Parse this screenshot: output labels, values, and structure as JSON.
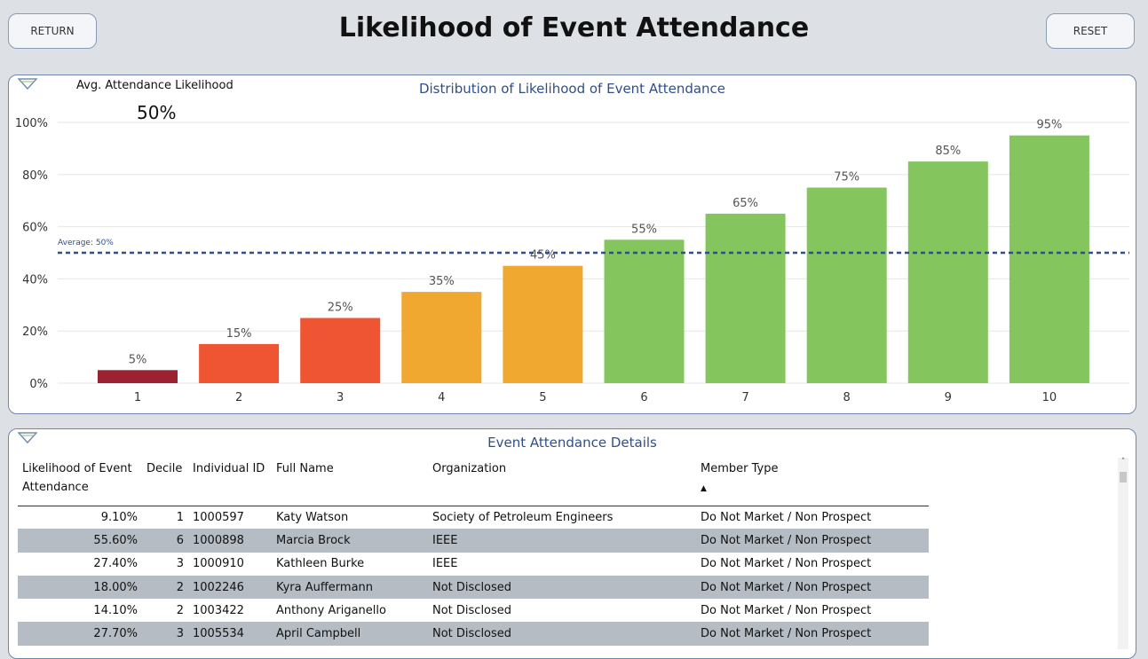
{
  "header": {
    "title": "Likelihood of Event Attendance",
    "return_label": "RETURN",
    "reset_label": "RESET"
  },
  "summary": {
    "label": "Avg. Attendance Likelihood",
    "value": "50%"
  },
  "chart_data": {
    "type": "bar",
    "title": "Distribution of Likelihood of Event Attendance",
    "categories": [
      "1",
      "2",
      "3",
      "4",
      "5",
      "6",
      "7",
      "8",
      "9",
      "10"
    ],
    "values": [
      5,
      15,
      25,
      35,
      45,
      55,
      65,
      75,
      85,
      95
    ],
    "data_labels": [
      "5%",
      "15%",
      "25%",
      "35%",
      "45%",
      "55%",
      "65%",
      "75%",
      "85%",
      "95%"
    ],
    "colors": [
      "#9b2230",
      "#f05533",
      "#f05533",
      "#f0a830",
      "#f0a830",
      "#84c55e",
      "#84c55e",
      "#84c55e",
      "#84c55e",
      "#84c55e"
    ],
    "ylim": [
      0,
      100
    ],
    "yticks": [
      "0%",
      "20%",
      "40%",
      "60%",
      "80%",
      "100%"
    ],
    "grid": true,
    "reference_line": {
      "value": 50,
      "label": "Average: 50%",
      "color": "#2f4f8a",
      "style": "dashed"
    }
  },
  "details": {
    "title": "Event Attendance Details",
    "columns": [
      "Likelihood of Event Attendance",
      "Decile",
      "Individual ID",
      "Full Name",
      "Organization",
      "Member Type"
    ],
    "sort_indicator": "▲",
    "rows": [
      [
        "9.10%",
        "1",
        "1000597",
        "Katy Watson",
        "Society of Petroleum Engineers",
        "Do Not Market / Non Prospect"
      ],
      [
        "55.60%",
        "6",
        "1000898",
        "Marcia Brock",
        "IEEE",
        "Do Not Market / Non Prospect"
      ],
      [
        "27.40%",
        "3",
        "1000910",
        "Kathleen Burke",
        "IEEE",
        "Do Not Market / Non Prospect"
      ],
      [
        "18.00%",
        "2",
        "1002246",
        "Kyra Auffermann",
        "Not Disclosed",
        "Do Not Market / Non Prospect"
      ],
      [
        "14.10%",
        "2",
        "1003422",
        "Anthony Ariganello",
        "Not Disclosed",
        "Do Not Market / Non Prospect"
      ],
      [
        "27.70%",
        "3",
        "1005534",
        "April Campbell",
        "Not Disclosed",
        "Do Not Market / Non Prospect"
      ]
    ]
  }
}
